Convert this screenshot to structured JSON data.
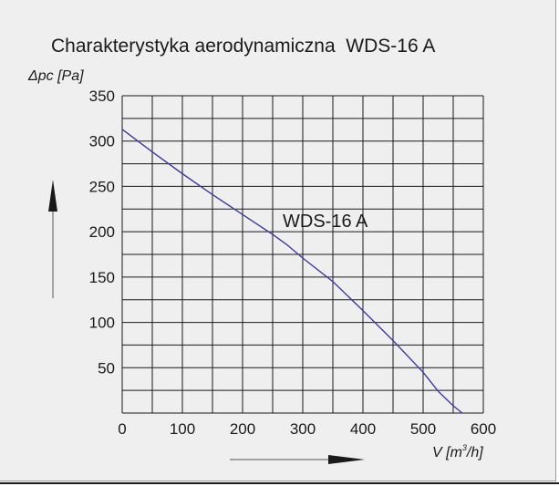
{
  "chart_data": {
    "type": "line",
    "title": "Charakterystyka aerodynamiczna  WDS-16 A",
    "xlabel": {
      "prefix": "V [m",
      "sup": "3",
      "suffix": "/h]"
    },
    "ylabel": "Δpc [Pa]",
    "xlim": [
      0,
      600
    ],
    "ylim": [
      0,
      350
    ],
    "x_ticks": [
      0,
      100,
      200,
      300,
      400,
      500,
      600
    ],
    "y_ticks": [
      50,
      100,
      150,
      200,
      250,
      300,
      350
    ],
    "x_grid_step": 50,
    "y_grid_step": 25,
    "grid": true,
    "series": [
      {
        "name": "WDS-16 A",
        "color": "#3b3ba0",
        "x": [
          0,
          50,
          100,
          150,
          200,
          250,
          275,
          300,
          350,
          400,
          450,
          500,
          525,
          550,
          565
        ],
        "y": [
          313,
          288,
          264,
          241,
          219,
          197,
          185,
          171,
          145,
          113,
          80,
          45,
          24,
          8,
          0
        ]
      }
    ]
  }
}
